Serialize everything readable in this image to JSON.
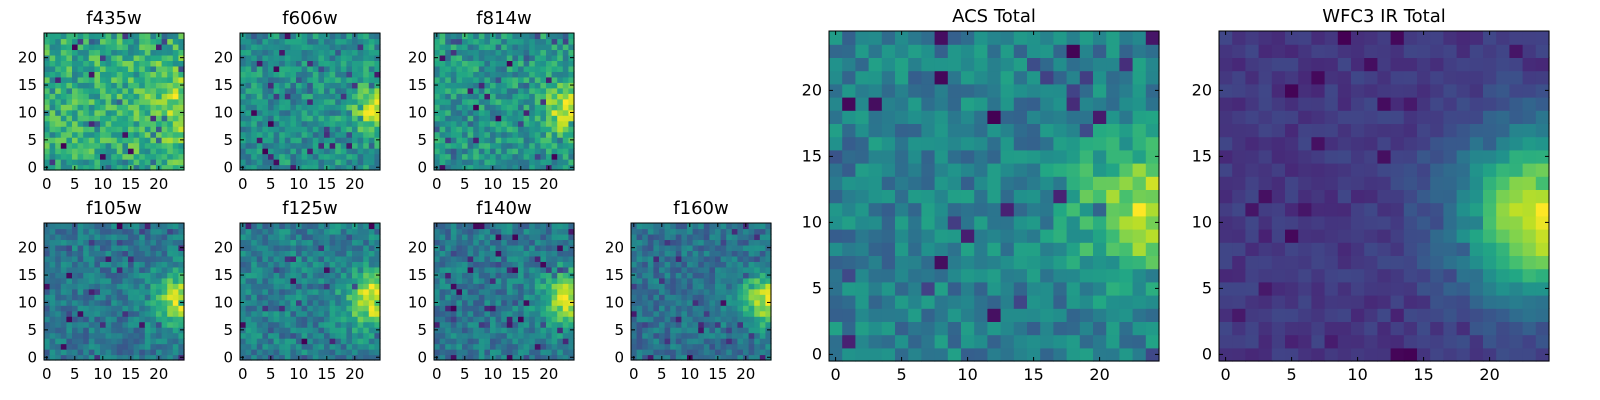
{
  "chart_data": [
    {
      "type": "heatmap",
      "title": "f435w",
      "xticks": [
        "0",
        "5",
        "10",
        "15",
        "20"
      ],
      "yticks": [
        "0",
        "5",
        "10",
        "15",
        "20"
      ],
      "xlim": [
        -0.5,
        24.5
      ],
      "ylim": [
        -0.5,
        24.5
      ],
      "colormap": "viridis",
      "noise": 0.28,
      "base": 0.55,
      "peak": 0.32,
      "peak_x": 24,
      "peak_y": 11,
      "peak_sigma": 5.0,
      "seed": 11,
      "grid": false
    },
    {
      "type": "heatmap",
      "title": "f606w",
      "xticks": [
        "0",
        "5",
        "10",
        "15",
        "20"
      ],
      "yticks": [
        "0",
        "5",
        "10",
        "15",
        "20"
      ],
      "xlim": [
        -0.5,
        24.5
      ],
      "ylim": [
        -0.5,
        24.5
      ],
      "colormap": "viridis",
      "noise": 0.24,
      "base": 0.32,
      "peak": 0.62,
      "peak_x": 24,
      "peak_y": 10.5,
      "peak_sigma": 3.2,
      "seed": 23,
      "grid": false
    },
    {
      "type": "heatmap",
      "title": "f814w",
      "xticks": [
        "0",
        "5",
        "10",
        "15",
        "20"
      ],
      "yticks": [
        "0",
        "5",
        "10",
        "15",
        "20"
      ],
      "xlim": [
        -0.5,
        24.5
      ],
      "ylim": [
        -0.5,
        24.5
      ],
      "colormap": "viridis",
      "noise": 0.24,
      "base": 0.36,
      "peak": 0.6,
      "peak_x": 24,
      "peak_y": 10.5,
      "peak_sigma": 3.3,
      "seed": 37,
      "grid": false
    },
    {
      "type": "heatmap",
      "title": "f105w",
      "xticks": [
        "0",
        "5",
        "10",
        "15",
        "20"
      ],
      "yticks": [
        "0",
        "5",
        "10",
        "15",
        "20"
      ],
      "xlim": [
        -0.5,
        24.5
      ],
      "ylim": [
        -0.5,
        24.5
      ],
      "colormap": "viridis",
      "noise": 0.16,
      "base": 0.32,
      "peak": 0.62,
      "peak_x": 24,
      "peak_y": 10.5,
      "peak_sigma": 3.6,
      "seed": 41,
      "grid": false
    },
    {
      "type": "heatmap",
      "title": "f125w",
      "xticks": [
        "0",
        "5",
        "10",
        "15",
        "20"
      ],
      "yticks": [
        "0",
        "5",
        "10",
        "15",
        "20"
      ],
      "xlim": [
        -0.5,
        24.5
      ],
      "ylim": [
        -0.5,
        24.5
      ],
      "colormap": "viridis",
      "noise": 0.16,
      "base": 0.33,
      "peak": 0.62,
      "peak_x": 24,
      "peak_y": 10.5,
      "peak_sigma": 3.6,
      "seed": 53,
      "grid": false
    },
    {
      "type": "heatmap",
      "title": "f140w",
      "xticks": [
        "0",
        "5",
        "10",
        "15",
        "20"
      ],
      "yticks": [
        "0",
        "5",
        "10",
        "15",
        "20"
      ],
      "xlim": [
        -0.5,
        24.5
      ],
      "ylim": [
        -0.5,
        24.5
      ],
      "colormap": "viridis",
      "noise": 0.16,
      "base": 0.34,
      "peak": 0.62,
      "peak_x": 24,
      "peak_y": 10.5,
      "peak_sigma": 3.6,
      "seed": 67,
      "grid": false
    },
    {
      "type": "heatmap",
      "title": "f160w",
      "xticks": [
        "0",
        "5",
        "10",
        "15",
        "20"
      ],
      "yticks": [
        "0",
        "5",
        "10",
        "15",
        "20"
      ],
      "xlim": [
        -0.5,
        24.5
      ],
      "ylim": [
        -0.5,
        24.5
      ],
      "colormap": "viridis",
      "noise": 0.17,
      "base": 0.24,
      "peak": 0.72,
      "peak_x": 24,
      "peak_y": 10.5,
      "peak_sigma": 3.4,
      "seed": 79,
      "grid": false
    },
    {
      "type": "heatmap",
      "title": "ACS Total",
      "xticks": [
        "0",
        "5",
        "10",
        "15",
        "20"
      ],
      "yticks": [
        "0",
        "5",
        "10",
        "15",
        "20"
      ],
      "xlim": [
        -0.5,
        24.5
      ],
      "ylim": [
        -0.5,
        24.5
      ],
      "colormap": "viridis",
      "noise": 0.13,
      "base": 0.5,
      "peak": 0.42,
      "peak_x": 23.5,
      "peak_y": 11,
      "peak_sigma": 3.6,
      "seed": 89,
      "grid": false
    },
    {
      "type": "heatmap",
      "title": "WFC3 IR Total",
      "xticks": [
        "0",
        "5",
        "10",
        "15",
        "20"
      ],
      "yticks": [
        "0",
        "5",
        "10",
        "15",
        "20"
      ],
      "xlim": [
        -0.5,
        24.5
      ],
      "ylim": [
        -0.5,
        24.5
      ],
      "colormap": "viridis",
      "noise": 0.05,
      "base": 0.2,
      "peak": 0.78,
      "peak_x": 24,
      "peak_y": 10.5,
      "peak_sigma": 4.4,
      "seed": 97,
      "grid": false
    }
  ]
}
